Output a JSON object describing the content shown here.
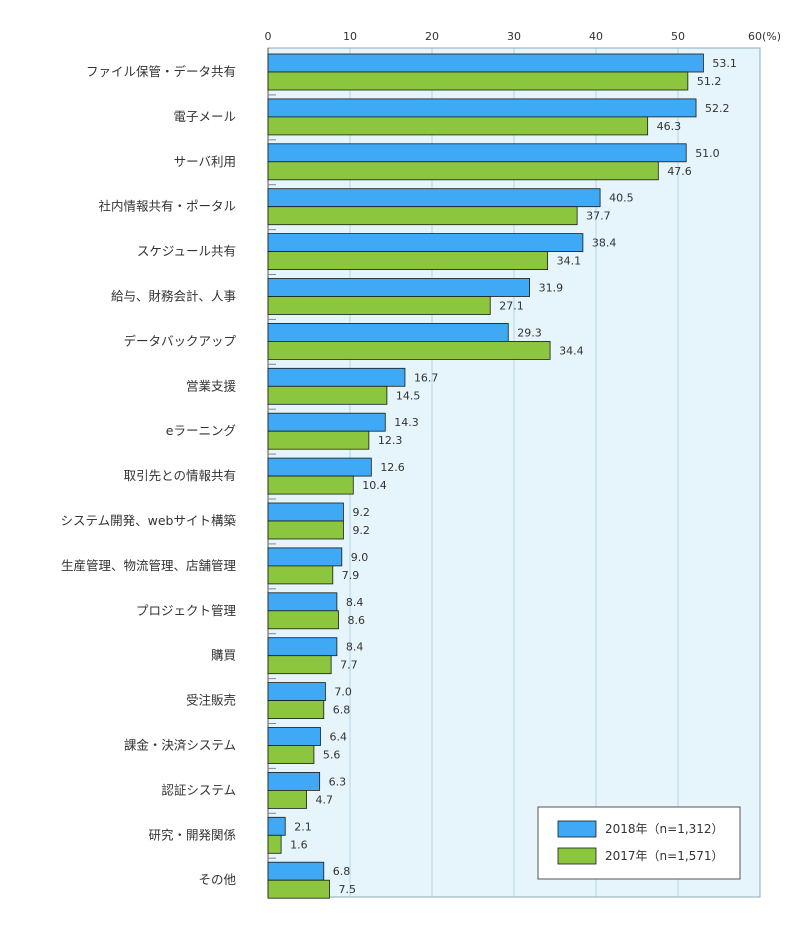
{
  "chart_data": {
    "type": "bar",
    "orientation": "horizontal",
    "categories": [
      "ファイル保管・データ共有",
      "電子メール",
      "サーバ利用",
      "社内情報共有・ポータル",
      "スケジュール共有",
      "給与、財務会計、人事",
      "データバックアップ",
      "営業支援",
      "eラーニング",
      "取引先との情報共有",
      "システム開発、webサイト構築",
      "生産管理、物流管理、店舗管理",
      "プロジェクト管理",
      "購買",
      "受注販売",
      "課金・決済システム",
      "認証システム",
      "研究・開発関係",
      "その他"
    ],
    "series": [
      {
        "name": "2018年（n=1,312）",
        "color": "#3fa9f5",
        "values": [
          53.1,
          52.2,
          51.0,
          40.5,
          38.4,
          31.9,
          29.3,
          16.7,
          14.3,
          12.6,
          9.2,
          9.0,
          8.4,
          8.4,
          7.0,
          6.4,
          6.3,
          2.1,
          6.8
        ],
        "labels": [
          "53.1",
          "52.2",
          "51.0",
          "40.5",
          "38.4",
          "31.9",
          "29.3",
          "16.7",
          "14.3",
          "12.6",
          "9.2",
          "9.0",
          "8.4",
          "8.4",
          "7.0",
          "6.4",
          "6.3",
          "2.1",
          "6.8"
        ]
      },
      {
        "name": "2017年（n=1,571）",
        "color": "#8cc63f",
        "values": [
          51.2,
          46.3,
          47.6,
          37.7,
          34.1,
          27.1,
          34.4,
          14.5,
          12.3,
          10.4,
          9.2,
          7.9,
          8.6,
          7.7,
          6.8,
          5.6,
          4.7,
          1.6,
          7.5
        ],
        "labels": [
          "51.2",
          "46.3",
          "47.6",
          "37.7",
          "34.1",
          "27.1",
          "34.4",
          "14.5",
          "12.3",
          "10.4",
          "9.2",
          "7.9",
          "8.6",
          "7.7",
          "6.8",
          "5.6",
          "4.7",
          "1.6",
          "7.5"
        ]
      }
    ],
    "x_ticks": [
      0,
      10,
      20,
      30,
      40,
      50,
      60
    ],
    "x_tick_labels": [
      "0",
      "10",
      "20",
      "30",
      "40",
      "50",
      "60(%)"
    ],
    "xlim": [
      0,
      60
    ],
    "grid": true,
    "plot_background": "#e6f4fb",
    "gridline_color": "#b7d4e3",
    "legend_position": "bottom-right"
  }
}
